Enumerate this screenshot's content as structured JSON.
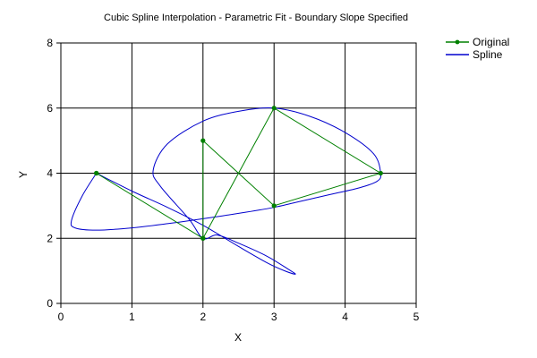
{
  "chart_data": {
    "type": "line",
    "title": "Cubic Spline Interpolation - Parametric Fit - Boundary Slope Specified",
    "xlabel": "X",
    "ylabel": "Y",
    "xlim": [
      0,
      5
    ],
    "ylim": [
      0,
      8
    ],
    "x_ticks": [
      "0",
      "1",
      "2",
      "3",
      "4",
      "5"
    ],
    "y_ticks": [
      "0",
      "2",
      "4",
      "6",
      "8"
    ],
    "grid": true,
    "legend_position": "top-right",
    "series": [
      {
        "name": "Original",
        "color": "#008000",
        "markers": true,
        "x": [
          0.5,
          2,
          3,
          4.5,
          3,
          2,
          2,
          0.5
        ],
        "y": [
          4,
          2,
          6,
          4,
          3,
          5,
          2,
          4
        ]
      },
      {
        "name": "Spline",
        "color": "#0000CD",
        "markers": false,
        "x": [
          0.5,
          1.0,
          1.5,
          2.0,
          2.5,
          2.9,
          3.15,
          3.3,
          3.2,
          2.9,
          2.5,
          2.2,
          2.0,
          1.8,
          1.4,
          1.3,
          1.5,
          2.0,
          2.5,
          3.0,
          3.5,
          4.0,
          4.4,
          4.5,
          4.45,
          4.2,
          3.8,
          3.3,
          3.0,
          2.6,
          2.0,
          1.5,
          1.0,
          0.5,
          0.2,
          0.15,
          0.3,
          0.5
        ],
        "y": [
          4,
          3.45,
          2.95,
          2.4,
          1.75,
          1.25,
          1.0,
          0.9,
          1.05,
          1.45,
          1.85,
          2.1,
          2.0,
          2.6,
          3.6,
          4.1,
          4.9,
          5.6,
          5.9,
          6.0,
          5.75,
          5.25,
          4.6,
          4.0,
          3.75,
          3.55,
          3.35,
          3.1,
          2.95,
          2.8,
          2.6,
          2.45,
          2.32,
          2.25,
          2.32,
          2.55,
          3.3,
          4
        ]
      }
    ]
  }
}
